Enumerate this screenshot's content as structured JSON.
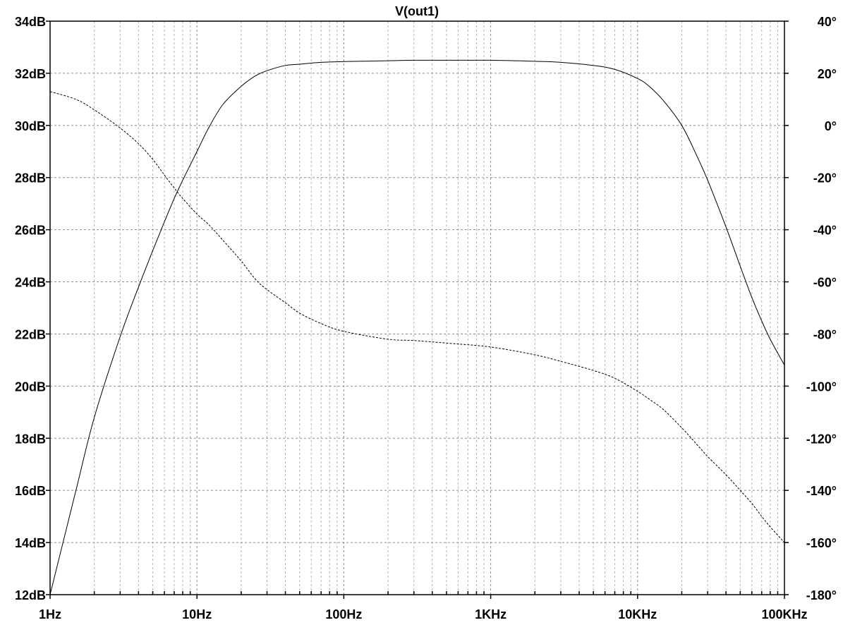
{
  "chart_data": {
    "type": "line",
    "title": "V(out1)",
    "x_scale": "log",
    "xlim": [
      1,
      100000
    ],
    "x_ticks": [
      1,
      10,
      100,
      1000,
      10000,
      100000
    ],
    "x_tick_labels": [
      "1Hz",
      "10Hz",
      "100Hz",
      "1KHz",
      "10KHz",
      "100KHz"
    ],
    "y_left": {
      "unit": "dB",
      "ylim": [
        12,
        34
      ],
      "ticks": [
        12,
        14,
        16,
        18,
        20,
        22,
        24,
        26,
        28,
        30,
        32,
        34
      ],
      "tick_labels": [
        "12dB",
        "14dB",
        "16dB",
        "18dB",
        "20dB",
        "22dB",
        "24dB",
        "26dB",
        "28dB",
        "30dB",
        "32dB",
        "34dB"
      ]
    },
    "y_right": {
      "unit": "°",
      "ylim": [
        -180,
        40
      ],
      "ticks": [
        -180,
        -160,
        -140,
        -120,
        -100,
        -80,
        -60,
        -40,
        -20,
        0,
        20,
        40
      ],
      "tick_labels": [
        "-180°",
        "-160°",
        "-140°",
        "-120°",
        "-100°",
        "-80°",
        "-60°",
        "-40°",
        "-20°",
        "0°",
        "20°",
        "40°"
      ]
    },
    "grid": true,
    "series": [
      {
        "axis": "left",
        "style": "solid",
        "x": [
          1,
          1.5,
          2,
          3,
          4,
          5,
          6,
          7,
          8,
          10,
          12,
          15,
          20,
          25,
          30,
          40,
          50,
          70,
          100,
          200,
          300,
          500,
          1000,
          2000,
          3000,
          5000,
          7000,
          10000,
          12000,
          15000,
          20000,
          25000,
          30000,
          40000,
          50000,
          60000,
          70000,
          80000,
          100000
        ],
        "values": [
          12.0,
          16.0,
          18.8,
          21.9,
          23.8,
          25.2,
          26.3,
          27.2,
          27.9,
          29.0,
          29.9,
          30.8,
          31.5,
          31.9,
          32.1,
          32.3,
          32.35,
          32.42,
          32.45,
          32.48,
          32.5,
          32.5,
          32.5,
          32.46,
          32.42,
          32.3,
          32.15,
          31.8,
          31.5,
          30.95,
          30.0,
          28.9,
          27.9,
          26.1,
          24.6,
          23.4,
          22.5,
          21.8,
          20.8
        ]
      },
      {
        "axis": "right",
        "style": "dashed",
        "x": [
          1,
          1.5,
          2,
          3,
          4,
          5,
          6,
          7,
          8,
          10,
          12,
          15,
          20,
          25,
          30,
          40,
          50,
          70,
          100,
          200,
          300,
          500,
          1000,
          2000,
          3000,
          5000,
          7000,
          10000,
          12000,
          15000,
          20000,
          25000,
          30000,
          40000,
          50000,
          60000,
          70000,
          80000,
          100000
        ],
        "values": [
          13,
          10,
          6,
          -1,
          -7,
          -13,
          -19,
          -24,
          -28,
          -34,
          -38,
          -44,
          -52,
          -59,
          -63,
          -68,
          -72,
          -76,
          -79,
          -82,
          -82.5,
          -83.5,
          -85,
          -88,
          -90.5,
          -94,
          -97,
          -102,
          -105,
          -109,
          -116,
          -122,
          -127,
          -134,
          -140,
          -145,
          -150,
          -154,
          -160
        ]
      }
    ]
  }
}
